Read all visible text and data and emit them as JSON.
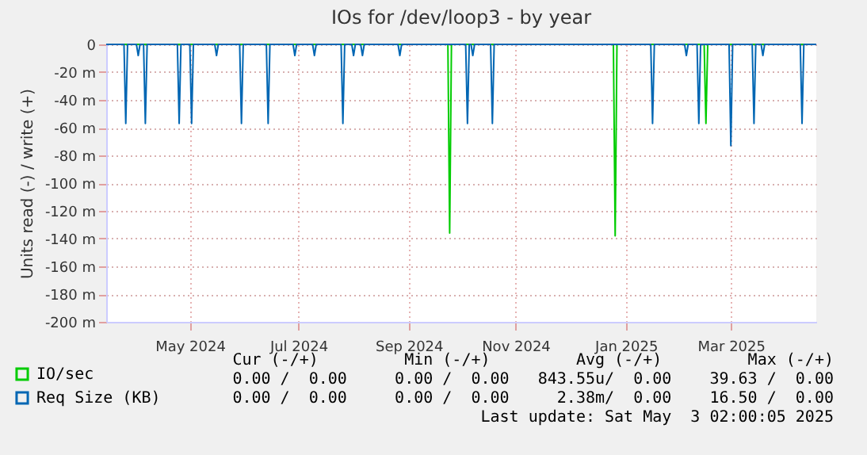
{
  "chart_data": {
    "type": "line",
    "title": "IOs for /dev/loop3 - by year",
    "ylabel": "Units read (-) / write (+)",
    "xlim": [
      "2024-03-30",
      "2025-05-03"
    ],
    "xticks": [
      {
        "value": "2024-05-16",
        "label": "May 2024"
      },
      {
        "value": "2024-07-16",
        "label": "Jul 2024"
      },
      {
        "value": "2024-09-16",
        "label": "Sep 2024"
      },
      {
        "value": "2024-11-15",
        "label": "Nov 2024"
      },
      {
        "value": "2025-01-16",
        "label": "Jan 2025"
      },
      {
        "value": "2025-03-16",
        "label": "Mar 2025"
      }
    ],
    "ylim": [
      -200,
      0
    ],
    "yticks": [
      0,
      {
        "value": -20,
        "label": "-20 m"
      },
      {
        "value": -40,
        "label": "-40 m"
      },
      {
        "value": -60,
        "label": "-60 m"
      },
      {
        "value": -80,
        "label": "-80 m"
      },
      {
        "value": -100,
        "label": "-100 m"
      },
      {
        "value": -120,
        "label": "-120 m"
      },
      {
        "value": -140,
        "label": "-140 m"
      },
      {
        "value": -160,
        "label": "-160 m"
      },
      {
        "value": -180,
        "label": "-180 m"
      },
      {
        "value": -200,
        "label": "-200 m"
      }
    ],
    "grid": true,
    "legend": "bottom left",
    "line_style": "solid",
    "series": [
      {
        "name": "IO/sec",
        "color": "#00cc00",
        "x": [
          "2024-03-30",
          "2024-10-08",
          "2024-10-09",
          "2024-10-10",
          "2025-01-09",
          "2025-01-10",
          "2025-01-11",
          "2025-03-01",
          "2025-03-02",
          "2025-03-03",
          "2025-05-03"
        ],
        "values": [
          0,
          0,
          -136,
          0,
          0,
          -138,
          0,
          0,
          -57,
          0,
          0
        ]
      },
      {
        "name": "Req Size (KB)",
        "color": "#0066b3",
        "x": [
          "2024-03-30",
          "2024-04-09",
          "2024-04-10",
          "2024-04-11",
          "2024-04-16",
          "2024-04-17",
          "2024-04-18",
          "2024-04-20",
          "2024-04-21",
          "2024-04-22",
          "2024-05-09",
          "2024-05-10",
          "2024-05-11",
          "2024-05-16",
          "2024-05-17",
          "2024-05-18",
          "2024-05-30",
          "2024-05-31",
          "2024-06-01",
          "2024-06-13",
          "2024-06-14",
          "2024-06-15",
          "2024-06-28",
          "2024-06-29",
          "2024-06-30",
          "2024-07-13",
          "2024-07-14",
          "2024-07-15",
          "2024-07-24",
          "2024-07-25",
          "2024-07-26",
          "2024-08-09",
          "2024-08-10",
          "2024-08-11",
          "2024-08-15",
          "2024-08-16",
          "2024-08-17",
          "2024-08-20",
          "2024-08-21",
          "2024-08-22",
          "2024-09-10",
          "2024-09-11",
          "2024-09-12",
          "2024-10-18",
          "2024-10-19",
          "2024-10-20",
          "2024-10-21",
          "2024-10-22",
          "2024-10-23",
          "2024-11-01",
          "2024-11-02",
          "2024-11-03",
          "2025-01-30",
          "2025-01-31",
          "2025-02-01",
          "2025-02-18",
          "2025-02-19",
          "2025-02-20",
          "2025-02-25",
          "2025-02-26",
          "2025-02-27",
          "2025-03-15",
          "2025-03-16",
          "2025-03-17",
          "2025-03-28",
          "2025-03-29",
          "2025-03-30",
          "2025-04-02",
          "2025-04-03",
          "2025-04-04",
          "2025-04-24",
          "2025-04-25",
          "2025-04-26",
          "2025-05-03"
        ],
        "values": [
          0,
          0,
          -57,
          0,
          0,
          -8,
          0,
          0,
          -57,
          0,
          0,
          -57,
          0,
          0,
          -57,
          0,
          0,
          -8,
          0,
          0,
          -57,
          0,
          0,
          -57,
          0,
          0,
          -8,
          0,
          0,
          -8,
          0,
          0,
          -57,
          0,
          0,
          -8,
          0,
          0,
          -8,
          0,
          0,
          -8,
          0,
          0,
          -57,
          0,
          0,
          -8,
          0,
          0,
          -57,
          0,
          0,
          -57,
          0,
          0,
          -8,
          0,
          0,
          -57,
          0,
          0,
          -73,
          0,
          0,
          -57,
          0,
          0,
          -8,
          0,
          0,
          -57,
          0,
          0
        ]
      }
    ],
    "annotations": [
      "Cur (-/+)         Min (-/+)         Avg (-/+)         Max (-/+)",
      "0.00 /  0.00     0.00 /  0.00   843.55u/  0.00    39.63 /  0.00",
      "0.00 /  0.00     0.00 /  0.00     2.38m/  0.00    16.50 /  0.00",
      "Last update: Sat May  3 02:00:05 2025"
    ]
  }
}
